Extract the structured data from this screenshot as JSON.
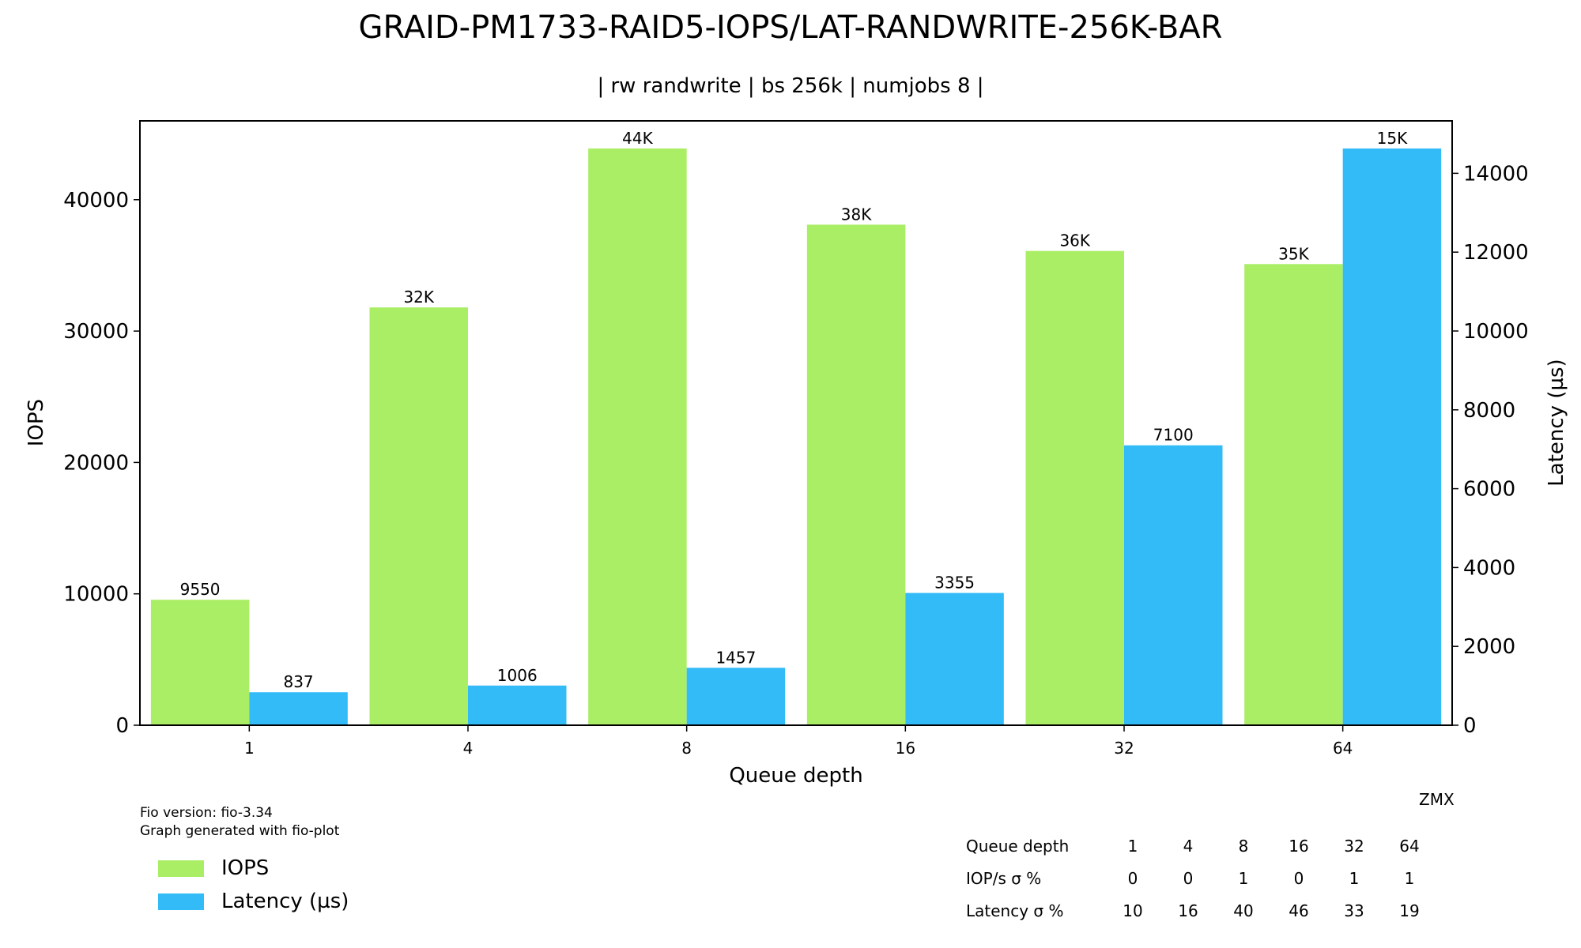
{
  "title": "GRAID-PM1733-RAID5-IOPS/LAT-RANDWRITE-256K-BAR",
  "subtitle": "| rw randwrite | bs 256k | numjobs 8 |",
  "notes": {
    "fio_version": "Fio version: fio-3.34",
    "generated_with": "Graph generated with fio-plot"
  },
  "watermark": "ZMX",
  "colors": {
    "iops": "#aaee66",
    "latency": "#33bbf8"
  },
  "chart_data": {
    "type": "bar",
    "title": "GRAID-PM1733-RAID5-IOPS/LAT-RANDWRITE-256K-BAR",
    "subtitle": "| rw randwrite | bs 256k | numjobs 8 |",
    "xlabel": "Queue depth",
    "ylabel": "IOPS",
    "y2label": "Latency (µs)",
    "categories": [
      "1",
      "4",
      "8",
      "16",
      "32",
      "64"
    ],
    "ylim": [
      0,
      46000
    ],
    "y2lim": [
      0,
      15330
    ],
    "yticks": [
      0,
      10000,
      20000,
      30000,
      40000
    ],
    "y2ticks": [
      0,
      2000,
      4000,
      6000,
      8000,
      10000,
      12000,
      14000
    ],
    "grid": false,
    "legend": "bottom-left",
    "series": [
      {
        "name": "IOPS",
        "axis": "left",
        "values": [
          9550,
          31800,
          43900,
          38100,
          36100,
          35100
        ],
        "labels": [
          "9550",
          "32K",
          "44K",
          "38K",
          "36K",
          "35K"
        ]
      },
      {
        "name": "Latency (µs)",
        "axis": "right",
        "values": [
          837,
          1006,
          1457,
          3355,
          7100,
          14630
        ],
        "labels": [
          "837",
          "1006",
          "1457",
          "3355",
          "7100",
          "15K"
        ]
      }
    ]
  },
  "stats_table": {
    "header_label": "Queue depth",
    "columns": [
      "1",
      "4",
      "8",
      "16",
      "32",
      "64"
    ],
    "rows": [
      {
        "label": "IOP/s σ %",
        "values": [
          "0",
          "0",
          "1",
          "0",
          "1",
          "1"
        ]
      },
      {
        "label": "Latency σ %",
        "values": [
          "10",
          "16",
          "40",
          "46",
          "33",
          "19"
        ]
      }
    ]
  }
}
